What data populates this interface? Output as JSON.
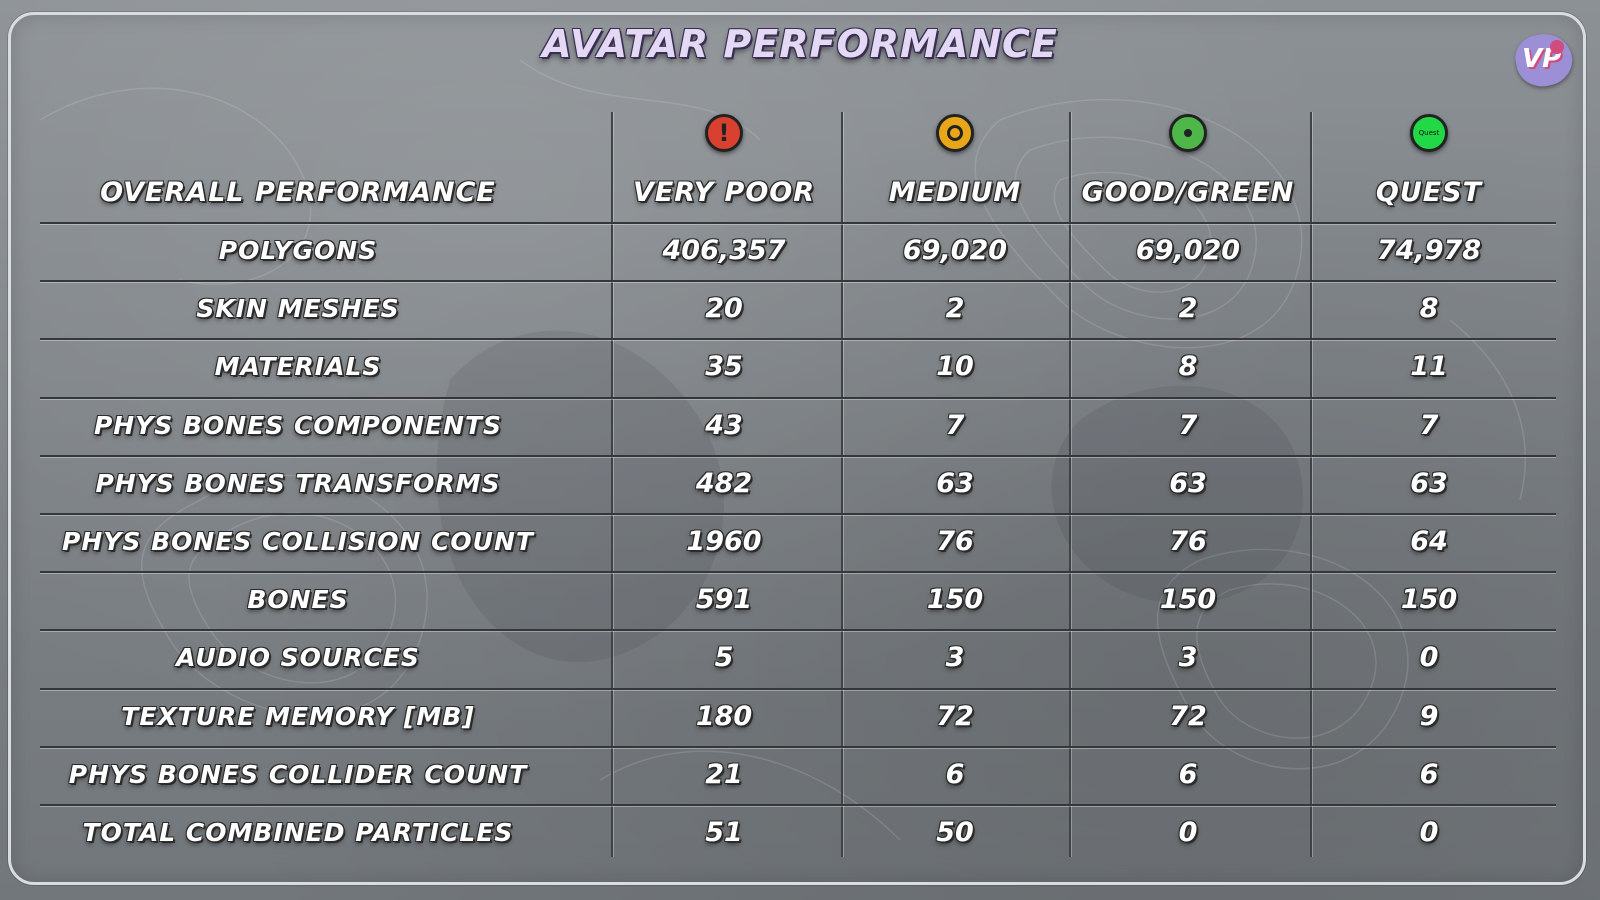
{
  "title": "AVATAR PERFORMANCE",
  "logo_text": "VP",
  "header": {
    "row_label": "OVERALL PERFORMANCE",
    "columns": [
      {
        "label": "VERY POOR",
        "icon": "very-poor-icon",
        "color": "#d8412f"
      },
      {
        "label": "MEDIUM",
        "icon": "medium-icon",
        "color": "#e8a718"
      },
      {
        "label": "GOOD/GREEN",
        "icon": "good-icon",
        "color": "#4fb64a"
      },
      {
        "label": "QUEST",
        "icon": "quest-icon",
        "color": "#21d846",
        "icon_text": "Quest"
      }
    ]
  },
  "rows": [
    {
      "label": "POLYGONS",
      "values": [
        "406,357",
        "69,020",
        "69,020",
        "74,978"
      ]
    },
    {
      "label": "SKIN MESHES",
      "values": [
        "20",
        "2",
        "2",
        "8"
      ]
    },
    {
      "label": "MATERIALS",
      "values": [
        "35",
        "10",
        "8",
        "11"
      ]
    },
    {
      "label": "PHYS BONES COMPONENTS",
      "values": [
        "43",
        "7",
        "7",
        "7"
      ]
    },
    {
      "label": "PHYS BONES TRANSFORMS",
      "values": [
        "482",
        "63",
        "63",
        "63"
      ]
    },
    {
      "label": "PHYS BONES COLLISION COUNT",
      "values": [
        "1960",
        "76",
        "76",
        "64"
      ]
    },
    {
      "label": "BONES",
      "values": [
        "591",
        "150",
        "150",
        "150"
      ]
    },
    {
      "label": "AUDIO SOURCES",
      "values": [
        "5",
        "3",
        "3",
        "0"
      ]
    },
    {
      "label": "TEXTURE MEMORY [MB]",
      "values": [
        "180",
        "72",
        "72",
        "9"
      ]
    },
    {
      "label": "PHYS BONES  COLLIDER COUNT",
      "values": [
        "21",
        "6",
        "6",
        "6"
      ]
    },
    {
      "label": "TOTAL COMBINED PARTICLES",
      "values": [
        "51",
        "50",
        "0",
        "0"
      ]
    }
  ]
}
